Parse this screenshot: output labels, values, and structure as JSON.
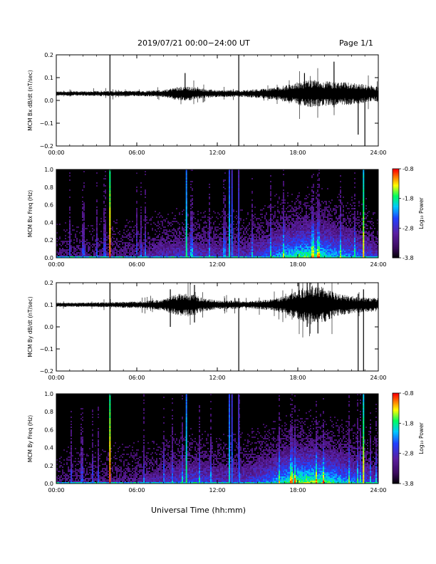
{
  "header": {
    "title": "2019/07/21  00:00−24:00 UT",
    "page": "Page 1/1"
  },
  "colors": {
    "trace": "#000000",
    "spectrogram_background": "#000000",
    "colormap": [
      "#000000",
      "#3a0a5c",
      "#5b1fa0",
      "#2040ff",
      "#00c8ff",
      "#00ff60",
      "#ffff00",
      "#ff8000",
      "#ff0000"
    ]
  },
  "xaxis": {
    "label": "Universal Time (hh:mm)",
    "ticks": [
      "00:00",
      "06:00",
      "12:00",
      "18:00",
      "24:00"
    ],
    "range": [
      0,
      24
    ]
  },
  "colorbar": {
    "label": "Log₁₀ Power",
    "ticks": [
      "-0.8",
      "-1.8",
      "-2.8",
      "-3.8"
    ],
    "range": [
      -3.8,
      -0.8
    ]
  },
  "chart_data": [
    {
      "type": "line",
      "panel": "bx",
      "ylabel": "MCM Bx dB/dt (nT/sec)",
      "ylim": [
        -0.2,
        0.2
      ],
      "yticks": [
        "0.2",
        "0.1",
        "0.0",
        "−0.1",
        "−0.2"
      ],
      "baseline": 0.03,
      "noise_envelope": {
        "hours": [
          0,
          2,
          4,
          6,
          8,
          9,
          10,
          11,
          12,
          13,
          14,
          15,
          16,
          17,
          18,
          19,
          20,
          21,
          22,
          23,
          24
        ],
        "amplitude": [
          0.01,
          0.01,
          0.012,
          0.012,
          0.015,
          0.03,
          0.03,
          0.02,
          0.015,
          0.015,
          0.015,
          0.02,
          0.025,
          0.035,
          0.05,
          0.06,
          0.055,
          0.05,
          0.05,
          0.04,
          0.03
        ]
      },
      "spikes": [
        {
          "hour": 4.0,
          "min": -0.2,
          "max": 0.2
        },
        {
          "hour": 9.6,
          "min": 0.0,
          "max": 0.12
        },
        {
          "hour": 13.6,
          "min": -0.2,
          "max": 0.2
        },
        {
          "hour": 18.5,
          "min": -0.02,
          "max": 0.12
        },
        {
          "hour": 20.7,
          "min": -0.03,
          "max": 0.17
        },
        {
          "hour": 22.5,
          "min": -0.15,
          "max": 0.06
        },
        {
          "hour": 23.0,
          "min": -0.2,
          "max": 0.05
        }
      ]
    },
    {
      "type": "heatmap",
      "panel": "bx_spec",
      "ylabel": "MCM Bx Freq (Hz)",
      "ylim": [
        0.0,
        1.0
      ],
      "yticks": [
        "1.0",
        "0.8",
        "0.6",
        "0.4",
        "0.2",
        "0.0"
      ],
      "zlim": [
        -3.8,
        -0.8
      ],
      "activity": {
        "hours": [
          0,
          3,
          6,
          8,
          10,
          12,
          14,
          16,
          17,
          18,
          19,
          20,
          21,
          22,
          23,
          24
        ],
        "level": [
          0.2,
          0.22,
          0.25,
          0.35,
          0.4,
          0.35,
          0.35,
          0.5,
          0.65,
          0.75,
          0.75,
          0.7,
          0.6,
          0.55,
          0.45,
          0.35
        ]
      },
      "vertical_streaks": [
        {
          "hour": 4.0,
          "power": -1.2
        },
        {
          "hour": 9.7,
          "power": -1.9
        },
        {
          "hour": 12.9,
          "power": -2.1
        },
        {
          "hour": 13.1,
          "power": -2.4
        },
        {
          "hour": 13.6,
          "power": -2.6
        },
        {
          "hour": 22.9,
          "power": -1.5
        }
      ]
    },
    {
      "type": "line",
      "panel": "by",
      "ylabel": "MCM By dB/dt (nT/sec)",
      "ylim": [
        -0.2,
        0.2
      ],
      "yticks": [
        "0.2",
        "0.1",
        "0.0",
        "−0.1",
        "−0.2"
      ],
      "baseline": 0.1,
      "noise_envelope": {
        "hours": [
          0,
          2,
          4,
          6,
          8,
          9,
          10,
          11,
          12,
          13,
          14,
          15,
          16,
          17,
          18,
          19,
          20,
          21,
          22,
          23,
          24
        ],
        "amplitude": [
          0.01,
          0.01,
          0.012,
          0.015,
          0.025,
          0.05,
          0.05,
          0.03,
          0.02,
          0.02,
          0.015,
          0.02,
          0.025,
          0.04,
          0.07,
          0.09,
          0.08,
          0.05,
          0.04,
          0.035,
          0.03
        ]
      },
      "spikes": [
        {
          "hour": 4.0,
          "min": -0.2,
          "max": 0.2
        },
        {
          "hour": 8.5,
          "min": 0.0,
          "max": 0.17
        },
        {
          "hour": 10.3,
          "min": 0.02,
          "max": 0.19
        },
        {
          "hour": 13.6,
          "min": -0.2,
          "max": 0.13
        },
        {
          "hour": 18.7,
          "min": 0.0,
          "max": 0.2
        },
        {
          "hour": 19.5,
          "min": -0.03,
          "max": 0.2
        },
        {
          "hour": 22.5,
          "min": -0.2,
          "max": 0.15
        },
        {
          "hour": 22.9,
          "min": -0.2,
          "max": 0.17
        }
      ]
    },
    {
      "type": "heatmap",
      "panel": "by_spec",
      "ylabel": "MCM By Freq (Hz)",
      "ylim": [
        0.0,
        1.0
      ],
      "yticks": [
        "1.0",
        "0.8",
        "0.6",
        "0.4",
        "0.2",
        "0.0"
      ],
      "zlim": [
        -3.8,
        -0.8
      ],
      "activity": {
        "hours": [
          0,
          3,
          6,
          8,
          10,
          12,
          14,
          16,
          17,
          18,
          19,
          20,
          21,
          22,
          23,
          24
        ],
        "level": [
          0.2,
          0.22,
          0.25,
          0.35,
          0.45,
          0.38,
          0.38,
          0.55,
          0.7,
          0.8,
          0.8,
          0.75,
          0.65,
          0.55,
          0.45,
          0.35
        ]
      },
      "vertical_streaks": [
        {
          "hour": 4.0,
          "power": -1.2
        },
        {
          "hour": 9.7,
          "power": -1.9
        },
        {
          "hour": 12.9,
          "power": -2.1
        },
        {
          "hour": 13.1,
          "power": -2.4
        },
        {
          "hour": 13.6,
          "power": -2.6
        },
        {
          "hour": 22.9,
          "power": -1.5
        }
      ]
    }
  ]
}
